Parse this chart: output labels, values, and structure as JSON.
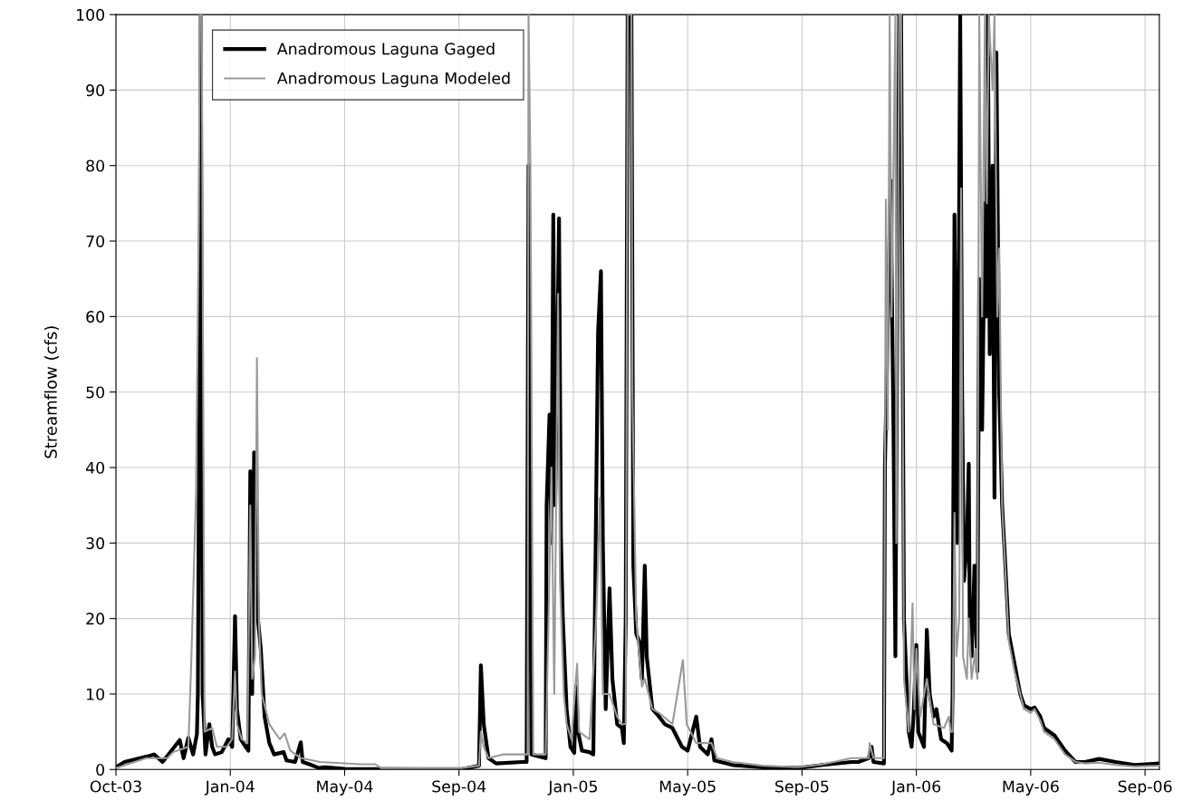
{
  "chart_data": {
    "type": "line",
    "ylabel": "Streamflow (cfs)",
    "xlim": [
      "2003-10-01",
      "2006-09-30"
    ],
    "ylim": [
      0,
      100
    ],
    "yticks": [
      0,
      10,
      20,
      30,
      40,
      50,
      60,
      70,
      80,
      90,
      100
    ],
    "xticks": [
      {
        "value": "2003-10-01",
        "label": "Oct-03"
      },
      {
        "value": "2004-01-29",
        "label": "Jan-04"
      },
      {
        "value": "2004-05-28",
        "label": "May-04"
      },
      {
        "value": "2004-09-25",
        "label": "Sep-04"
      },
      {
        "value": "2005-01-23",
        "label": "Jan-05"
      },
      {
        "value": "2005-05-23",
        "label": "May-05"
      },
      {
        "value": "2005-09-20",
        "label": "Sep-05"
      },
      {
        "value": "2006-01-18",
        "label": "Jan-06"
      },
      {
        "value": "2006-05-18",
        "label": "May-06"
      },
      {
        "value": "2006-09-15",
        "label": "Sep-06"
      }
    ],
    "grid": true,
    "legend": "top left",
    "marker": "none",
    "line_style": "solid",
    "series": [
      {
        "name": "Anadromous Laguna Gaged",
        "color": "#000000",
        "x": [
          "2003-10-01",
          "2003-10-10",
          "2003-11-02",
          "2003-11-10",
          "2003-11-19",
          "2003-12-07",
          "2003-12-11",
          "2003-12-16",
          "2003-12-21",
          "2003-12-25",
          "2003-12-26",
          "2003-12-28",
          "2003-12-29",
          "2003-12-31",
          "2004-01-03",
          "2004-01-07",
          "2004-01-10",
          "2004-01-13",
          "2004-01-20",
          "2004-01-27",
          "2004-01-31",
          "2004-02-03",
          "2004-02-05",
          "2004-02-09",
          "2004-02-14",
          "2004-02-17",
          "2004-02-19",
          "2004-02-21",
          "2004-02-23",
          "2004-02-27",
          "2004-03-01",
          "2004-03-05",
          "2004-03-10",
          "2004-03-15",
          "2004-03-25",
          "2004-03-28",
          "2004-04-06",
          "2004-04-12",
          "2004-04-14",
          "2004-04-21",
          "2004-05-01",
          "2004-05-08",
          "2004-05-28",
          "2004-09-27",
          "2004-10-16",
          "2004-10-18",
          "2004-10-21",
          "2004-10-26",
          "2004-11-03",
          "2004-11-30",
          "2004-12-05",
          "2004-12-07",
          "2004-12-10",
          "2004-12-25",
          "2004-12-26",
          "2004-12-29",
          "2004-12-31",
          "2005-01-02",
          "2005-01-04",
          "2005-01-08",
          "2005-01-10",
          "2005-01-12",
          "2005-01-16",
          "2005-01-20",
          "2005-01-24",
          "2005-01-26",
          "2005-01-28",
          "2005-02-01",
          "2005-02-09",
          "2005-02-13",
          "2005-02-16",
          "2005-02-18",
          "2005-02-21",
          "2005-02-23",
          "2005-02-26",
          "2005-03-02",
          "2005-03-05",
          "2005-03-10",
          "2005-03-15",
          "2005-03-17",
          "2005-03-19",
          "2005-03-21",
          "2005-03-25",
          "2005-03-27",
          "2005-03-30",
          "2005-04-02",
          "2005-04-05",
          "2005-04-08",
          "2005-04-10",
          "2005-04-16",
          "2005-04-23",
          "2005-04-29",
          "2005-05-07",
          "2005-05-13",
          "2005-05-17",
          "2005-05-23",
          "2005-06-01",
          "2005-06-05",
          "2005-06-13",
          "2005-06-17",
          "2005-06-20",
          "2005-07-09",
          "2005-08-10",
          "2005-09-16",
          "2005-10-12",
          "2005-11-11",
          "2005-11-18",
          "2005-11-29",
          "2005-12-02",
          "2005-12-04",
          "2005-12-15",
          "2005-12-16",
          "2005-12-22",
          "2005-12-25",
          "2005-12-27",
          "2005-12-28",
          "2005-12-31",
          "2006-01-02",
          "2006-01-05",
          "2006-01-10",
          "2006-01-13",
          "2006-01-15",
          "2006-01-18",
          "2006-01-20",
          "2006-01-26",
          "2006-01-29",
          "2006-02-01",
          "2006-02-05",
          "2006-02-08",
          "2006-02-13",
          "2006-02-19",
          "2006-02-24",
          "2006-02-25",
          "2006-02-27",
          "2006-03-02",
          "2006-03-05",
          "2006-03-07",
          "2006-03-09",
          "2006-03-12",
          "2006-03-14",
          "2006-03-15",
          "2006-03-17",
          "2006-03-20",
          "2006-03-23",
          "2006-03-25",
          "2006-03-28",
          "2006-03-31",
          "2006-04-01",
          "2006-04-03",
          "2006-04-05",
          "2006-04-08",
          "2006-04-10",
          "2006-04-12",
          "2006-04-15",
          "2006-04-18",
          "2006-04-21",
          "2006-04-25",
          "2006-05-01",
          "2006-05-07",
          "2006-05-11",
          "2006-05-18",
          "2006-05-22",
          "2006-05-28",
          "2006-06-01",
          "2006-06-12",
          "2006-06-23",
          "2006-07-04",
          "2006-07-14",
          "2006-07-29",
          "2006-08-15",
          "2006-09-04",
          "2006-09-30"
        ],
        "values": [
          0.3,
          1,
          1.7,
          2,
          1,
          3.9,
          1.5,
          4.2,
          2,
          4.7,
          10,
          64,
          100,
          10,
          2,
          6,
          3,
          2,
          2.3,
          4,
          3,
          20.3,
          8,
          4,
          3,
          2.5,
          39.5,
          10,
          42,
          20,
          16,
          7,
          3.5,
          2,
          2.3,
          1.2,
          1,
          3.6,
          1,
          0.7,
          0.2,
          0.3,
          0.1,
          0,
          0.5,
          13.8,
          6,
          1.5,
          0.8,
          1,
          1,
          80,
          2,
          1.5,
          35,
          47,
          30,
          73.5,
          35,
          73,
          31,
          20,
          8,
          3,
          2.2,
          11,
          5,
          2.5,
          2.3,
          2,
          36,
          58,
          66,
          30,
          8,
          24,
          12,
          6,
          5.5,
          3.5,
          20,
          100,
          100,
          27,
          18,
          17,
          12,
          27,
          15,
          8,
          7,
          6,
          5.5,
          4,
          3,
          2.5,
          7,
          3,
          2,
          4,
          1.2,
          0.6,
          0.3,
          0.2,
          0.6,
          1,
          1,
          1.5,
          3,
          1,
          0.8,
          40,
          78,
          45,
          15,
          40,
          100,
          100,
          20,
          5,
          3,
          7,
          16.5,
          5,
          3,
          18.5,
          10,
          7,
          8,
          4,
          3.5,
          2.5,
          10,
          73.5,
          30,
          100,
          50,
          25,
          30,
          40.5,
          20,
          15,
          27,
          13,
          65,
          45,
          75,
          60,
          100,
          55,
          80,
          36,
          95,
          50,
          35,
          28,
          18,
          14,
          10,
          8.5,
          8,
          8.2,
          7,
          5.5,
          4.5,
          2.5,
          1,
          1,
          1.4,
          1,
          0.6,
          0.8
        ]
      },
      {
        "name": "Anadromous Laguna Modeled",
        "color": "#999999",
        "x": [
          "2003-10-01",
          "2003-11-02",
          "2003-11-24",
          "2003-11-30",
          "2003-12-16",
          "2003-12-19",
          "2003-12-24",
          "2003-12-27",
          "2003-12-28",
          "2003-12-30",
          "2004-01-02",
          "2004-01-10",
          "2004-01-15",
          "2004-01-25",
          "2004-01-31",
          "2004-02-03",
          "2004-02-05",
          "2004-02-10",
          "2004-02-16",
          "2004-02-19",
          "2004-02-21",
          "2004-02-24",
          "2004-02-26",
          "2004-02-28",
          "2004-03-02",
          "2004-03-10",
          "2004-03-21",
          "2004-03-26",
          "2004-04-01",
          "2004-04-12",
          "2004-04-21",
          "2004-05-02",
          "2004-06-14",
          "2004-06-29",
          "2004-07-05",
          "2004-09-27",
          "2004-10-16",
          "2004-10-18",
          "2004-10-21",
          "2004-10-26",
          "2004-11-10",
          "2004-11-30",
          "2004-12-06",
          "2004-12-07",
          "2004-12-09",
          "2004-12-12",
          "2004-12-25",
          "2004-12-28",
          "2004-12-31",
          "2005-01-03",
          "2005-01-07",
          "2005-01-09",
          "2005-01-13",
          "2005-01-16",
          "2005-01-21",
          "2005-01-27",
          "2005-01-29",
          "2005-02-09",
          "2005-02-16",
          "2005-02-20",
          "2005-02-23",
          "2005-02-26",
          "2005-03-02",
          "2005-03-10",
          "2005-03-15",
          "2005-03-19",
          "2005-03-21",
          "2005-03-25",
          "2005-03-26",
          "2005-03-30",
          "2005-04-05",
          "2005-04-08",
          "2005-04-16",
          "2005-04-23",
          "2005-05-07",
          "2005-05-18",
          "2005-05-22",
          "2005-06-01",
          "2005-06-17",
          "2005-06-23",
          "2005-07-09",
          "2005-08-10",
          "2005-09-16",
          "2005-10-12",
          "2005-11-11",
          "2005-11-29",
          "2005-11-30",
          "2005-12-04",
          "2005-12-15",
          "2005-12-17",
          "2005-12-19",
          "2005-12-21",
          "2005-12-23",
          "2005-12-27",
          "2005-12-28",
          "2005-12-31",
          "2006-01-02",
          "2006-01-05",
          "2006-01-10",
          "2006-01-14",
          "2006-01-16",
          "2006-01-18",
          "2006-01-22",
          "2006-01-29",
          "2006-02-05",
          "2006-02-16",
          "2006-02-21",
          "2006-02-23",
          "2006-02-25",
          "2006-02-27",
          "2006-03-01",
          "2006-03-04",
          "2006-03-06",
          "2006-03-08",
          "2006-03-12",
          "2006-03-14",
          "2006-03-17",
          "2006-03-21",
          "2006-03-23",
          "2006-03-25",
          "2006-03-28",
          "2006-03-31",
          "2006-04-02",
          "2006-04-04",
          "2006-04-08",
          "2006-04-10",
          "2006-04-13",
          "2006-04-15",
          "2006-04-18",
          "2006-04-25",
          "2006-05-01",
          "2006-05-11",
          "2006-05-18",
          "2006-05-22",
          "2006-05-28",
          "2006-06-01",
          "2006-06-12",
          "2006-06-23",
          "2006-07-04",
          "2006-07-14",
          "2006-07-29",
          "2006-08-15",
          "2006-09-04",
          "2006-09-30"
        ],
        "values": [
          0.2,
          1.5,
          1.5,
          2.3,
          3,
          14,
          36.5,
          73,
          100,
          100,
          5,
          5.5,
          3,
          3,
          4,
          13,
          6,
          4,
          3.5,
          35,
          12,
          15,
          54.5,
          20,
          10,
          6,
          4,
          4.8,
          2.5,
          1.5,
          1.3,
          1,
          0.7,
          0.7,
          0.2,
          0.2,
          0.5,
          5,
          3,
          1.5,
          2,
          2,
          2,
          100,
          80,
          2,
          2,
          20,
          40,
          10,
          63,
          25,
          10,
          6,
          4,
          14,
          5,
          4,
          20,
          36,
          10,
          10,
          10,
          7,
          6,
          6,
          100,
          100,
          50,
          20,
          11,
          12,
          8,
          7.5,
          6,
          14.5,
          6,
          3.5,
          3.5,
          1.5,
          1,
          0.5,
          0.3,
          0.7,
          1.5,
          1.5,
          3.5,
          1.5,
          1.5,
          75.5,
          45,
          100,
          60,
          100,
          30,
          100,
          100,
          12,
          5,
          22,
          8,
          16,
          7,
          12,
          6,
          5.5,
          7,
          5,
          5,
          34,
          15,
          20,
          77,
          15,
          12,
          20,
          12,
          16,
          12,
          100,
          60,
          100,
          75,
          100,
          90,
          100,
          60,
          69,
          35,
          17,
          13,
          8,
          7.5,
          8,
          6.5,
          5,
          4,
          2,
          1,
          0.8,
          0.9,
          0.6,
          0.4,
          0.5
        ]
      }
    ]
  }
}
